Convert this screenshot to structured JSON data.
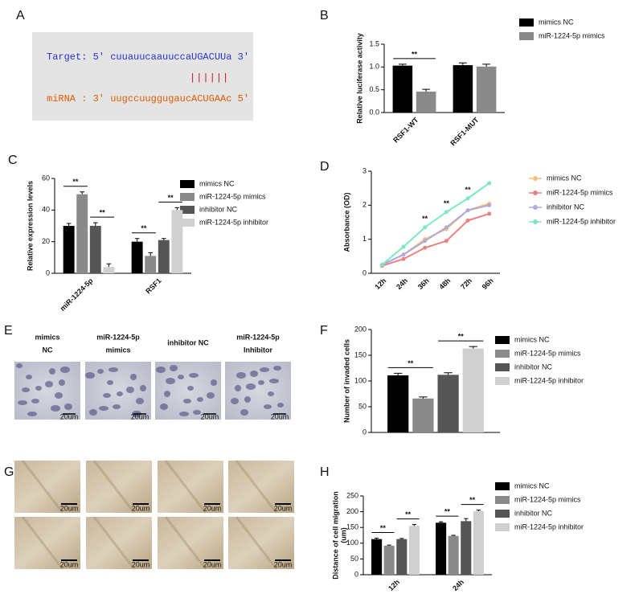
{
  "panel_labels": [
    "A",
    "B",
    "C",
    "D",
    "E",
    "F",
    "G",
    "H"
  ],
  "sequence": {
    "target": "Target: 5' cuuauucaauuccaUGACUUa 3'",
    "pairing": "||||||",
    "mirna": "miRNA : 3' uugccuuggugaucACUGAAc 5'"
  },
  "chart_data": [
    {
      "type": "bar",
      "y_label": "Relative luciferase activity",
      "categories": [
        "RSF1-WT",
        "RSF1-MUT"
      ],
      "series": [
        {
          "name": "mimics NC",
          "color": "#000000",
          "values": [
            1.03,
            1.04
          ],
          "errors": [
            0.03,
            0.05
          ]
        },
        {
          "name": "miR-1224-5p mimics",
          "color": "#8a8a8a",
          "values": [
            0.46,
            1.01
          ],
          "errors": [
            0.05,
            0.05
          ]
        }
      ],
      "ylim": [
        0,
        1.5
      ],
      "yticks": [
        {
          "value": 0,
          "label": "0.0"
        },
        {
          "value": 0.5,
          "label": "0.5"
        },
        {
          "value": 1,
          "label": "1.0"
        },
        {
          "value": 1.5,
          "label": "1.5"
        }
      ],
      "annotations": [
        "**"
      ]
    },
    {
      "type": "bar",
      "y_label": "Relative expression levels",
      "categories": [
        "miR-1224-5p",
        "RSF1"
      ],
      "series": [
        {
          "name": "mimics NC",
          "color": "#000000",
          "values": [
            30,
            20
          ],
          "errors": [
            1.5,
            2
          ]
        },
        {
          "name": "miR-1224-5p mimics",
          "color": "#8a8a8a",
          "values": [
            50,
            11
          ],
          "errors": [
            1.5,
            2
          ]
        },
        {
          "name": "inhibitor NC",
          "color": "#555555",
          "values": [
            30,
            21
          ],
          "errors": [
            2,
            1
          ]
        },
        {
          "name": "miR-1224-5p inhibitor",
          "color": "#d0d0d0",
          "values": [
            4,
            40
          ],
          "errors": [
            2,
            1.5
          ]
        }
      ],
      "ylim": [
        0,
        60
      ],
      "yticks": [
        0,
        20,
        40,
        60
      ],
      "annotations": [
        "**",
        "**",
        "**",
        "**"
      ]
    },
    {
      "type": "line",
      "y_label": "Absorbance (OD)",
      "categories": [
        "12h",
        "24h",
        "36h",
        "48h",
        "72h",
        "96h"
      ],
      "series": [
        {
          "name": "mimics NC",
          "color": "#f5c07a",
          "values": [
            0.25,
            0.55,
            1.0,
            1.3,
            1.85,
            2.05
          ]
        },
        {
          "name": "miR-1224-5p mimics",
          "color": "#ee7f7f",
          "values": [
            0.22,
            0.42,
            0.75,
            0.95,
            1.55,
            1.75
          ]
        },
        {
          "name": "inhibitor NC",
          "color": "#b0a8e0",
          "values": [
            0.25,
            0.55,
            0.95,
            1.35,
            1.85,
            2.0
          ]
        },
        {
          "name": "miR-1224-5p inhibitor",
          "color": "#7de8c0",
          "values": [
            0.25,
            0.78,
            1.35,
            1.8,
            2.2,
            2.65
          ]
        }
      ],
      "ylim": [
        0,
        3
      ],
      "yticks": [
        0,
        1,
        2,
        3
      ],
      "annotations": [
        "**",
        "**",
        "**"
      ]
    },
    {
      "type": "bar",
      "y_label": "Number of invaded cells",
      "categories": [
        null
      ],
      "series": [
        {
          "name": "mimics NC",
          "color": "#000000",
          "values": [
            111
          ],
          "errors": [
            4
          ]
        },
        {
          "name": "miR-1224-5p mimics",
          "color": "#8a8a8a",
          "values": [
            66
          ],
          "errors": [
            3
          ]
        },
        {
          "name": "inhibitor NC",
          "color": "#555555",
          "values": [
            112
          ],
          "errors": [
            4
          ]
        },
        {
          "name": "miR-1224-5p inhibitor",
          "color": "#d0d0d0",
          "values": [
            163
          ],
          "errors": [
            4
          ]
        }
      ],
      "ylim": [
        0,
        200
      ],
      "yticks": [
        0,
        50,
        100,
        150,
        200
      ],
      "annotations": [
        "**",
        "**"
      ]
    },
    {
      "type": "bar",
      "y_label": [
        "Distance of cell migration",
        "(um)"
      ],
      "categories": [
        "12h",
        "24h"
      ],
      "series": [
        {
          "name": "mimics NC",
          "color": "#000000",
          "values": [
            113,
            165
          ],
          "errors": [
            3,
            3
          ]
        },
        {
          "name": "miR-1224-5p mimics",
          "color": "#8a8a8a",
          "values": [
            92,
            123
          ],
          "errors": [
            2,
            2
          ]
        },
        {
          "name": "inhibitor NC",
          "color": "#555555",
          "values": [
            113,
            170
          ],
          "errors": [
            2,
            8
          ]
        },
        {
          "name": "miR-1224-5p inhibitor",
          "color": "#d0d0d0",
          "values": [
            155,
            202
          ],
          "errors": [
            4,
            3
          ]
        }
      ],
      "ylim": [
        0,
        250
      ],
      "yticks": [
        0,
        50,
        100,
        150,
        200,
        250
      ],
      "annotations": [
        "**",
        "**",
        "**",
        "**"
      ]
    }
  ],
  "invasion_images": {
    "labels": [
      [
        "mimics",
        "NC"
      ],
      [
        "miR-1224-5p",
        "mimics"
      ],
      [
        "inhibitor NC"
      ],
      [
        "miR-1224-5p",
        "Inhibitor"
      ]
    ],
    "scale_bar": "20um"
  },
  "migration_images": {
    "scale_bar": "20um"
  }
}
